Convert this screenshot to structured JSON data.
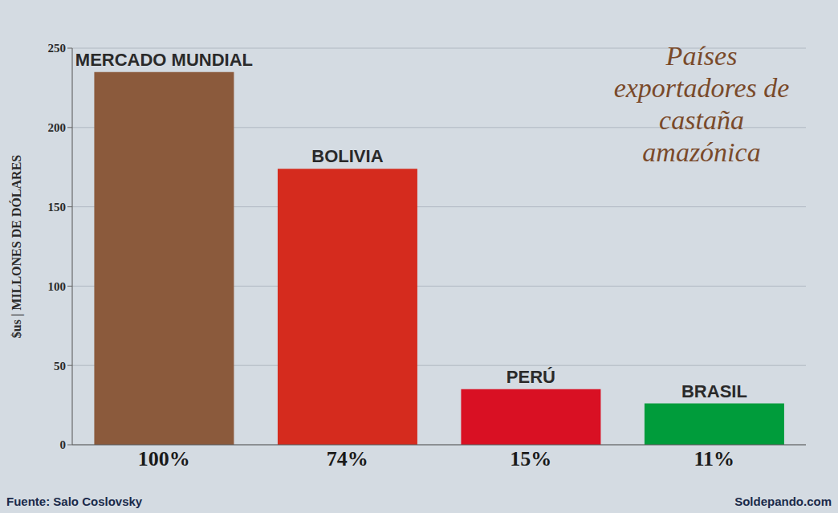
{
  "chart_data": {
    "type": "bar",
    "title": "Países exportadores de castaña amazónica",
    "y_label": "$us | MILLONES DE DÓLARES",
    "categories": [
      "MERCADO MUNDIAL",
      "BOLIVIA",
      "PERÚ",
      "BRASIL"
    ],
    "values": [
      235,
      174,
      35,
      26
    ],
    "shares": [
      "100%",
      "74%",
      "15%",
      "11%"
    ],
    "colors": [
      "#8b5a3c",
      "#d52b1e",
      "#d91023",
      "#009c3b"
    ],
    "ylim": [
      0,
      250
    ],
    "yticks": [
      0,
      50,
      100,
      150,
      200,
      250
    ],
    "grid": true,
    "source": "Fuente: Salo Coslovsky",
    "credit": "Soldepando.com"
  }
}
